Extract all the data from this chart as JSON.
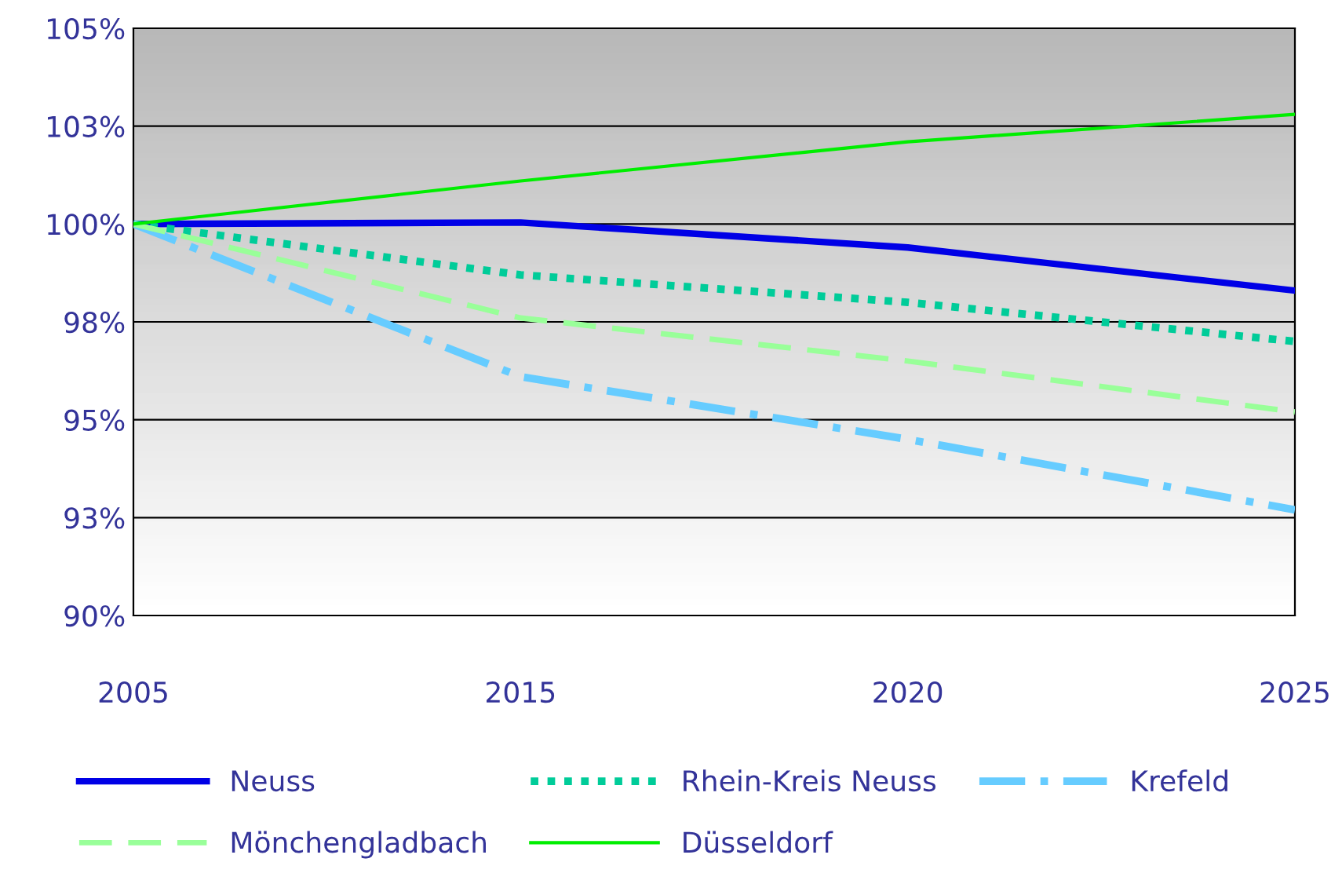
{
  "chart_data": {
    "type": "line",
    "categories": [
      "2005",
      "2015",
      "2020",
      "2025"
    ],
    "series": [
      {
        "name": "Neuss",
        "color": "#0000e6",
        "line_style": "solid",
        "values": [
          100,
          100.04,
          99.4,
          98.3
        ]
      },
      {
        "name": "Rhein-Kreis Neuss",
        "color": "#00cc99",
        "line_style": "dotted",
        "values": [
          100,
          98.7,
          98.0,
          97.0
        ]
      },
      {
        "name": "Krefeld",
        "color": "#66ccff",
        "line_style": "dashdot",
        "values": [
          100,
          96.1,
          94.5,
          92.7
        ]
      },
      {
        "name": "Mönchengladbach",
        "color": "#99ff99",
        "line_style": "dashed",
        "values": [
          100,
          97.6,
          96.5,
          95.2
        ]
      },
      {
        "name": "Düsseldorf",
        "color": "#00ee00",
        "line_style": "solid",
        "values": [
          100,
          101.1,
          102.1,
          102.8
        ]
      }
    ],
    "ylim": [
      90,
      105
    ],
    "yticks": [
      {
        "value": 90,
        "label": "90%"
      },
      {
        "value": 92.5,
        "label": "93%"
      },
      {
        "value": 95,
        "label": "95%"
      },
      {
        "value": 97.5,
        "label": "98%"
      },
      {
        "value": 100,
        "label": "100%"
      },
      {
        "value": 102.5,
        "label": "103%"
      },
      {
        "value": 105,
        "label": "105%"
      }
    ],
    "grid": "y",
    "legend": "bottom",
    "marker": "none"
  }
}
